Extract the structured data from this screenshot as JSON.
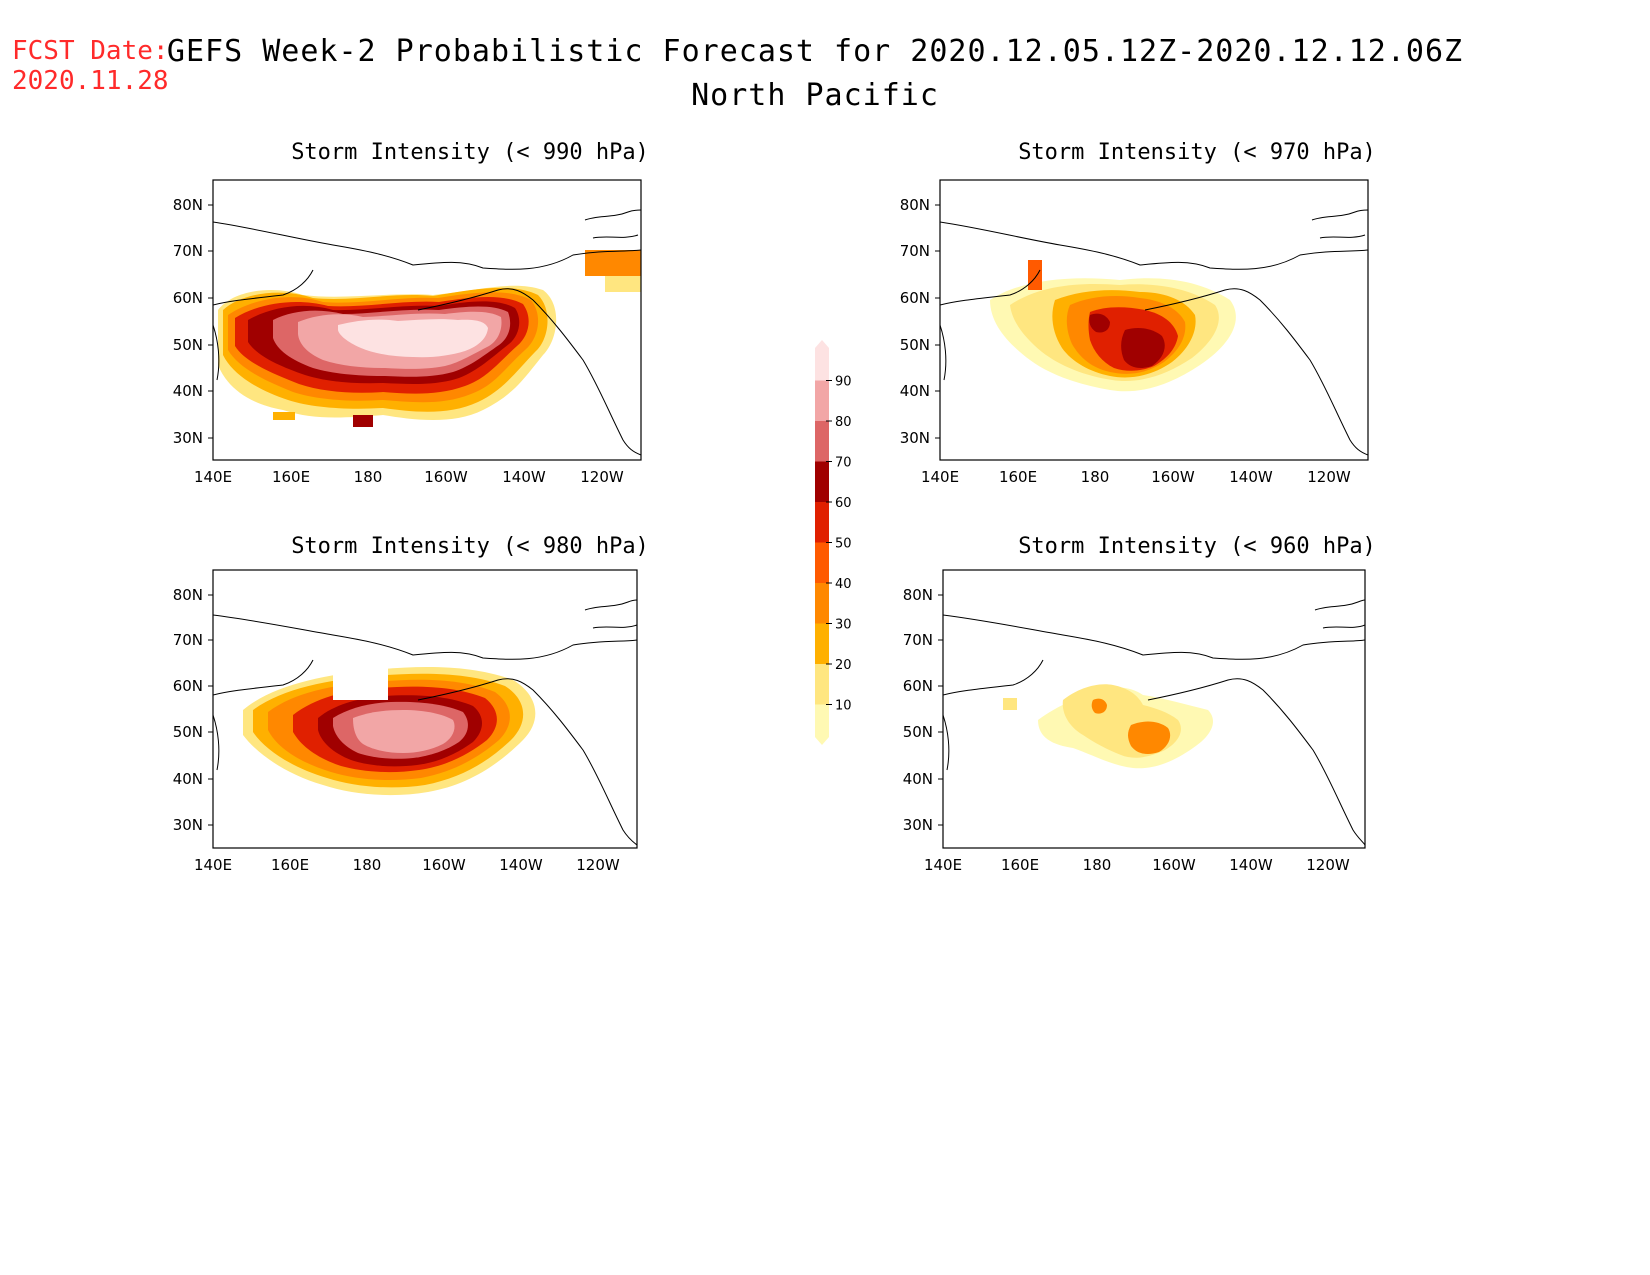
{
  "header": {
    "fcst_label": "FCST Date:",
    "fcst_date": "2020.11.28",
    "title": "GEFS Week-2 Probabilistic Forecast for 2020.12.05.12Z-2020.12.12.06Z",
    "subtitle": "North Pacific"
  },
  "axes": {
    "lon_labels": [
      "140E",
      "160E",
      "180",
      "160W",
      "140W",
      "120W"
    ],
    "lat_labels": [
      "80N",
      "70N",
      "60N",
      "50N",
      "40N",
      "30N"
    ]
  },
  "colorbar": {
    "levels": [
      "10",
      "20",
      "30",
      "40",
      "50",
      "60",
      "70",
      "80",
      "90"
    ],
    "colors": [
      "#fff9b3",
      "#ffe680",
      "#ffb000",
      "#ff8800",
      "#ff5a00",
      "#e02000",
      "#a00000",
      "#dd6666",
      "#f2a6a6",
      "#fde2e2"
    ]
  },
  "panels": [
    {
      "id": "p990",
      "title": "Storm Intensity (< 990 hPa)"
    },
    {
      "id": "p970",
      "title": "Storm Intensity (< 970 hPa)"
    },
    {
      "id": "p980",
      "title": "Storm Intensity (< 980 hPa)"
    },
    {
      "id": "p960",
      "title": "Storm Intensity (< 960 hPa)"
    }
  ]
}
